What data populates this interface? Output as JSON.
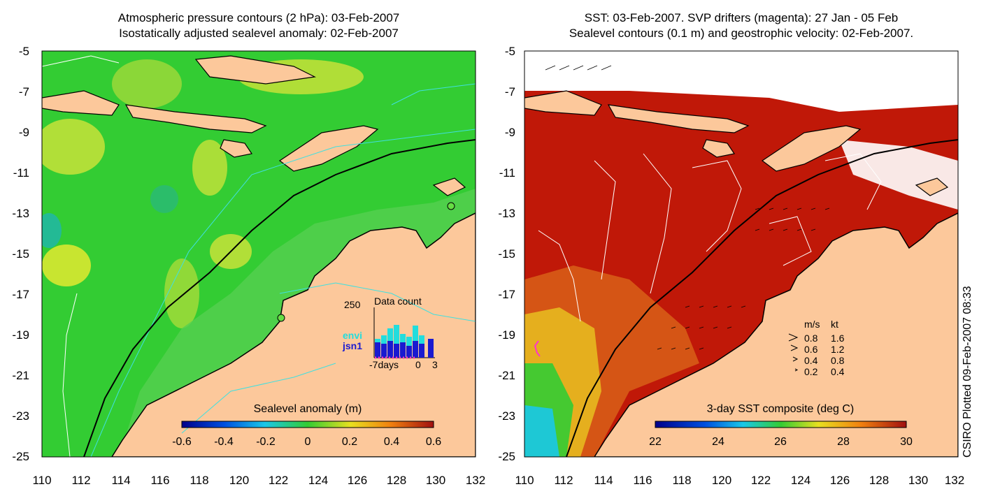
{
  "left_panel": {
    "title_line1": "Atmospheric pressure contours (2 hPa): 03-Feb-2007",
    "title_line2": "Isostatically adjusted sealevel anomaly: 02-Feb-2007",
    "y_ticks": [
      "-5",
      "-7",
      "-9",
      "-11",
      "-13",
      "-15",
      "-17",
      "-19",
      "-21",
      "-23",
      "-25"
    ],
    "x_ticks": [
      "110",
      "112",
      "114",
      "116",
      "118",
      "120",
      "122",
      "124",
      "126",
      "128",
      "130",
      "132"
    ],
    "colorbar": {
      "title": "Sealevel anomaly (m)",
      "ticks": [
        "-0.6",
        "-0.4",
        "-0.2",
        "0",
        "0.2",
        "0.4",
        "0.6"
      ]
    },
    "inset": {
      "title": "Data count",
      "y_max_label": "250",
      "series": [
        "envi",
        "jsn1"
      ],
      "series_colors": [
        "#22dddd",
        "#1a1ad0"
      ],
      "x_labels": [
        "-7days",
        "0",
        "3"
      ]
    }
  },
  "right_panel": {
    "title_line1": "SST: 03-Feb-2007. SVP drifters (magenta): 27 Jan - 05 Feb",
    "title_line2": "Sealevel contours (0.1 m) and geostrophic velocity: 02-Feb-2007.",
    "y_ticks": [
      "-5",
      "-7",
      "-9",
      "-11",
      "-13",
      "-15",
      "-17",
      "-19",
      "-21",
      "-23",
      "-25"
    ],
    "x_ticks": [
      "110",
      "112",
      "114",
      "116",
      "118",
      "120",
      "122",
      "124",
      "126",
      "128",
      "130",
      "132"
    ],
    "colorbar": {
      "title": "3-day SST composite (deg C)",
      "ticks": [
        "22",
        "24",
        "26",
        "28",
        "30"
      ]
    },
    "velocity_legend": {
      "header_ms": "m/s",
      "header_kt": "kt",
      "rows": [
        {
          "ms": "0.8",
          "kt": "1.6"
        },
        {
          "ms": "0.6",
          "kt": "1.2"
        },
        {
          "ms": "0.4",
          "kt": "0.8"
        },
        {
          "ms": "0.2",
          "kt": "0.4"
        }
      ]
    }
  },
  "credit": "CSIRO Plotted 09-Feb-2007 08:33",
  "colors": {
    "land": "#fcc89b",
    "ocean_green": "#33cc33",
    "sst_red": "#c01808",
    "contour_cyan": "#3fe0e0"
  }
}
